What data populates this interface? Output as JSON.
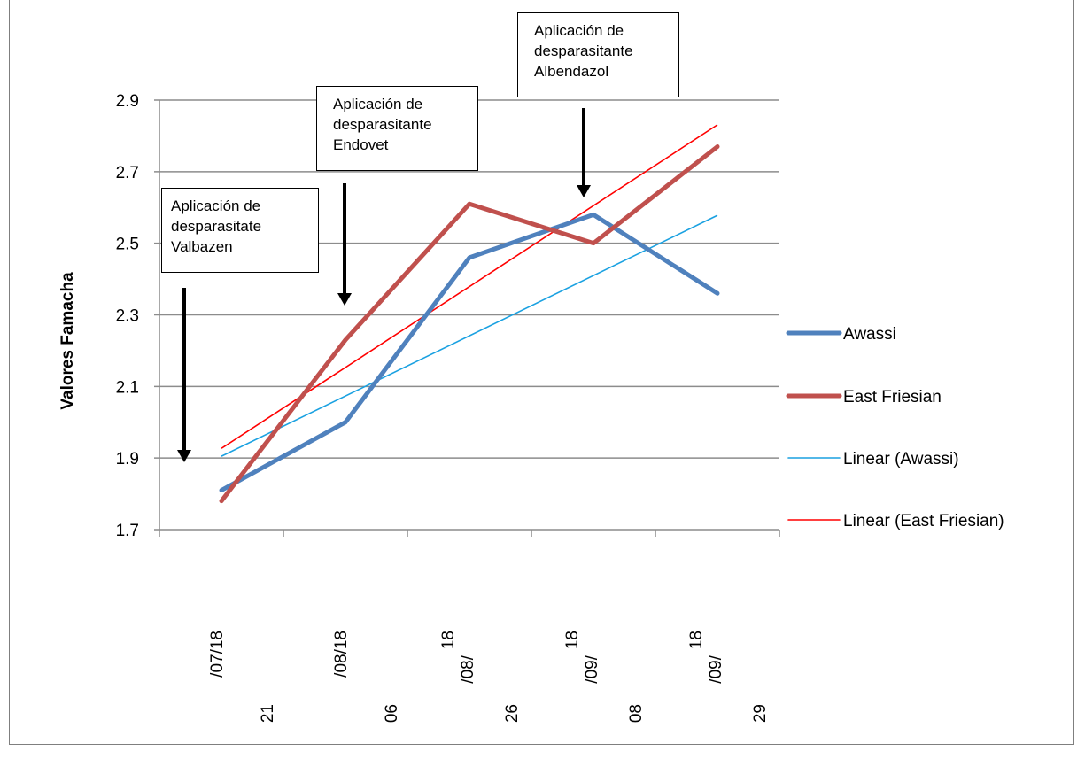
{
  "chart_data": {
    "type": "line",
    "ylabel": "Valores Famacha",
    "ylim": [
      1.7,
      2.9
    ],
    "yticks": [
      "2.9",
      "2.7",
      "2.5",
      "2.3",
      "2.1",
      "1.9",
      "1.7"
    ],
    "grid": true,
    "legend_position": "right",
    "categories": [
      {
        "top": "/07/18",
        "bottom": "21"
      },
      {
        "top": "/08/18",
        "bottom": "06"
      },
      {
        "top": "18",
        "mid": "/08/",
        "bottom": "26"
      },
      {
        "top": "18",
        "mid": "/09/",
        "bottom": "08"
      },
      {
        "top": "18",
        "mid": "/09/",
        "bottom": "29"
      }
    ],
    "series": [
      {
        "name": "Awassi",
        "values": [
          1.81,
          2.0,
          2.46,
          2.58,
          2.36
        ],
        "color": "#4f81bd"
      },
      {
        "name": "East Friesian",
        "values": [
          1.78,
          2.23,
          2.61,
          2.5,
          2.77
        ],
        "color": "#c0504d"
      }
    ],
    "trendlines": [
      {
        "name": "Linear (Awassi)",
        "start": 1.905,
        "end": 2.578,
        "color": "#1aa1e1"
      },
      {
        "name": "Linear (East Friesian)",
        "start": 1.927,
        "end": 2.831,
        "color": "#ff0000"
      }
    ],
    "annotations": [
      {
        "lines": [
          "Aplicación de",
          "desparasitate",
          "Valbazen"
        ]
      },
      {
        "lines": [
          "Aplicación de",
          "desparasitante",
          "Endovet"
        ]
      },
      {
        "lines": [
          "Aplicación de",
          "desparasitante",
          "Albendazol"
        ]
      }
    ]
  }
}
